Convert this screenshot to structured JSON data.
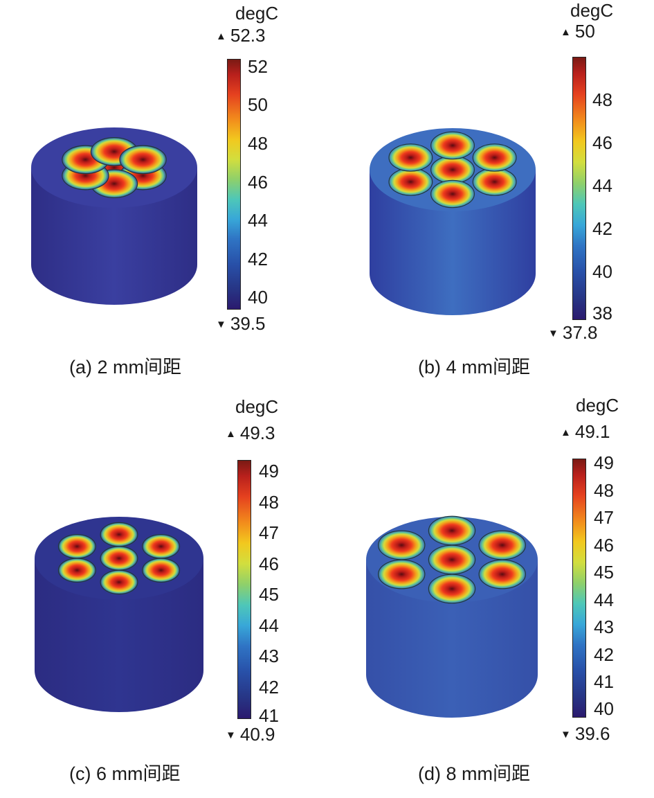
{
  "unit": "degC",
  "panels": [
    {
      "id": "a",
      "caption": "(a) 2 mm间距",
      "max_label": "52.3",
      "min_label": "39.5",
      "ticks": [
        "52",
        "50",
        "48",
        "46",
        "44",
        "42",
        "40"
      ],
      "spacing_mm": 2,
      "colors": {
        "body": "#2e2e86",
        "top": "#3a3fa0",
        "hot": "#7a1016"
      }
    },
    {
      "id": "b",
      "caption": "(b) 4 mm间距",
      "max_label": "50",
      "min_label": "37.8",
      "ticks": [
        "48",
        "46",
        "44",
        "42",
        "40",
        "38"
      ],
      "spacing_mm": 4,
      "colors": {
        "body": "#2f3fa0",
        "top": "#3e6ec0",
        "hot": "#8a1216"
      }
    },
    {
      "id": "c",
      "caption": "(c) 6 mm间距",
      "max_label": "49.3",
      "min_label": "40.9",
      "ticks": [
        "49",
        "48",
        "47",
        "46",
        "45",
        "44",
        "43",
        "42",
        "41"
      ],
      "spacing_mm": 6,
      "colors": {
        "body": "#2c2c82",
        "top": "#2f3590",
        "hot": "#8a1216"
      }
    },
    {
      "id": "d",
      "caption": "(d) 8 mm间距",
      "max_label": "49.1",
      "min_label": "39.6",
      "ticks": [
        "49",
        "48",
        "47",
        "46",
        "45",
        "44",
        "43",
        "42",
        "41",
        "40"
      ],
      "spacing_mm": 8,
      "colors": {
        "body": "#3550a8",
        "top": "#3b60b6",
        "hot": "#8a1216"
      }
    }
  ]
}
